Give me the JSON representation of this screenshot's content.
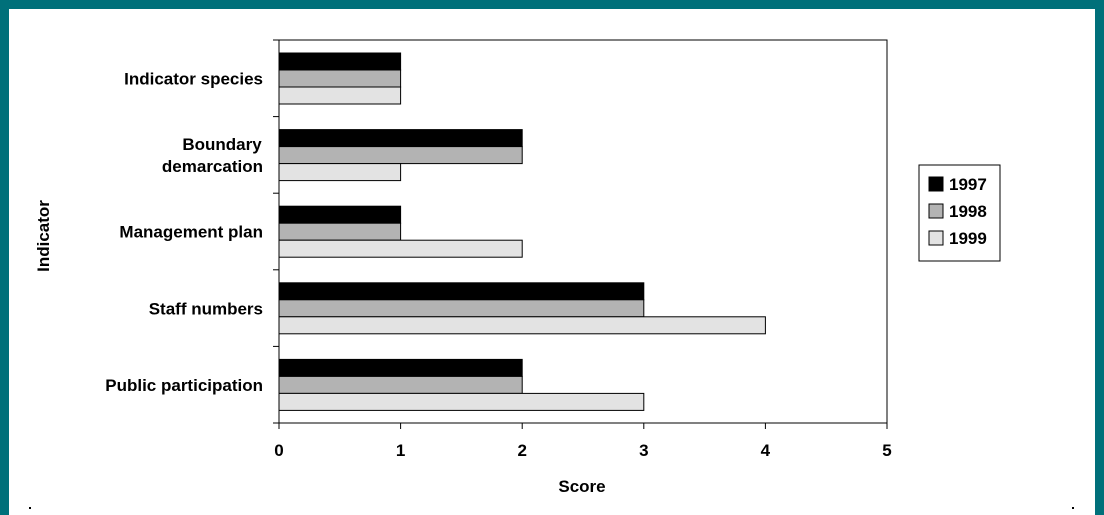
{
  "frame_color": "#00707a",
  "chart_data": {
    "type": "bar",
    "orientation": "horizontal",
    "categories": [
      "Indicator species",
      "Boundary demarcation",
      "Management plan",
      "Staff numbers",
      "Public participation"
    ],
    "category_lines": [
      [
        "Indicator species"
      ],
      [
        "Boundary",
        "demarcation"
      ],
      [
        "Management plan"
      ],
      [
        "Staff numbers"
      ],
      [
        "Public participation"
      ]
    ],
    "series": [
      {
        "name": "1997",
        "values": [
          1,
          2,
          1,
          3,
          2
        ],
        "color": "#000000"
      },
      {
        "name": "1998",
        "values": [
          1,
          2,
          1,
          3,
          2
        ],
        "color": "#b3b3b3"
      },
      {
        "name": "1999",
        "values": [
          1,
          1,
          2,
          4,
          3
        ],
        "color": "#e3e3e3"
      }
    ],
    "xlabel": "Score",
    "ylabel": "Indicator",
    "xlim": [
      0,
      5
    ],
    "xticks": [
      "0",
      "1",
      "2",
      "3",
      "4",
      "5"
    ],
    "grid": false,
    "legend": "right"
  }
}
